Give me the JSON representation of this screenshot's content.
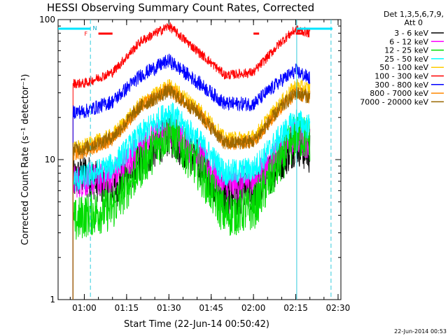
{
  "chart_data": {
    "type": "line",
    "title": "HESSI Observing Summary Count Rates, Corrected",
    "xlabel": "Start Time (22-Jun-14 00:50:42)",
    "ylabel": "Corrected Count Rate (s⁻¹ detector⁻¹)",
    "y_scale": "log",
    "ylim": [
      1,
      100
    ],
    "y_ticks": [
      "1",
      "10",
      "100"
    ],
    "x_range": [
      "00:50:42",
      "02:31:00"
    ],
    "x_ticks": [
      "01:00",
      "01:15",
      "01:30",
      "01:45",
      "02:00",
      "02:15",
      "02:30"
    ],
    "legend_header": [
      "Det 1,3,5,6,7,9,",
      "Att 0"
    ],
    "legend_placement": "right",
    "timestamp": "22-Jun-2014 00:53",
    "flag_labels": {
      "night": "N",
      "flare": "F"
    },
    "marker_times": {
      "cyan_solid": "02:15:20",
      "dashed": [
        "01:02:10",
        "02:27:30"
      ]
    },
    "series": [
      {
        "name": "3 - 6 keV",
        "color": "#000000",
        "x": [
          "00:56:00",
          "01:00:00",
          "01:10:00",
          "01:20:00",
          "01:30:00",
          "01:40:00",
          "01:50:00",
          "02:00:00",
          "02:10:00",
          "02:15:00",
          "02:20:00"
        ],
        "values": [
          7,
          8,
          6,
          10,
          15,
          10,
          5.5,
          6,
          10,
          13,
          11
        ]
      },
      {
        "name": "6 - 12 keV",
        "color": "#ff00ff",
        "x": [
          "00:56:00",
          "01:00:00",
          "01:10:00",
          "01:20:00",
          "01:30:00",
          "01:40:00",
          "01:50:00",
          "02:00:00",
          "02:10:00",
          "02:15:00",
          "02:20:00"
        ],
        "values": [
          7,
          7,
          7.5,
          12,
          17,
          11,
          6.5,
          7,
          12,
          15,
          13
        ]
      },
      {
        "name": "12 - 25 keV",
        "color": "#00dd00",
        "x": [
          "00:56:00",
          "01:00:00",
          "01:10:00",
          "01:20:00",
          "01:30:00",
          "01:40:00",
          "01:50:00",
          "02:00:00",
          "02:10:00",
          "02:15:00",
          "02:20:00"
        ],
        "values": [
          3.5,
          4,
          4.5,
          9,
          16,
          9,
          4,
          4.5,
          10,
          15,
          14
        ]
      },
      {
        "name": "25 - 50 keV",
        "color": "#00ffff",
        "x": [
          "00:56:00",
          "01:00:00",
          "01:10:00",
          "01:20:00",
          "01:30:00",
          "01:40:00",
          "01:50:00",
          "02:00:00",
          "02:10:00",
          "02:15:00",
          "02:20:00"
        ],
        "values": [
          7,
          7.5,
          9,
          15,
          22,
          14,
          8,
          8.5,
          15,
          19,
          17
        ]
      },
      {
        "name": "50 - 100 keV",
        "color": "#ffcc00",
        "x": [
          "00:56:00",
          "01:00:00",
          "01:10:00",
          "01:20:00",
          "01:30:00",
          "01:40:00",
          "01:50:00",
          "02:00:00",
          "02:10:00",
          "02:15:00",
          "02:20:00"
        ],
        "values": [
          12,
          12.5,
          15,
          25,
          34,
          24,
          14,
          14.5,
          26,
          34,
          32
        ]
      },
      {
        "name": "100 - 300 keV",
        "color": "#ff0000",
        "x": [
          "00:56:00",
          "01:00:00",
          "01:10:00",
          "01:20:00",
          "01:30:00",
          "01:40:00",
          "01:50:00",
          "02:00:00",
          "02:10:00",
          "02:15:00",
          "02:20:00"
        ],
        "values": [
          35,
          35,
          42,
          70,
          90,
          60,
          40,
          42,
          70,
          85,
          80
        ]
      },
      {
        "name": "300 - 800 keV",
        "color": "#0000ff",
        "x": [
          "00:56:00",
          "01:00:00",
          "01:10:00",
          "01:20:00",
          "01:30:00",
          "01:40:00",
          "01:50:00",
          "02:00:00",
          "02:10:00",
          "02:15:00",
          "02:20:00"
        ],
        "values": [
          22,
          22,
          26,
          40,
          51,
          36,
          25,
          25,
          37,
          43,
          38
        ]
      },
      {
        "name": "800 - 7000 keV",
        "color": "#ff8800",
        "x": [
          "00:56:00",
          "01:00:00",
          "01:10:00",
          "01:20:00",
          "01:30:00",
          "01:40:00",
          "01:50:00",
          "02:00:00",
          "02:10:00",
          "02:15:00",
          "02:20:00"
        ],
        "values": [
          11,
          11.5,
          14,
          24,
          32,
          22,
          13,
          13.5,
          24,
          30,
          28
        ]
      },
      {
        "name": "7000 - 20000 keV",
        "color": "#996600",
        "x": [
          "00:56:00",
          "01:00:00",
          "01:10:00",
          "01:20:00",
          "01:30:00",
          "01:40:00",
          "01:50:00",
          "02:00:00",
          "02:10:00",
          "02:15:00",
          "02:20:00"
        ],
        "values": [
          12,
          12,
          14.5,
          24,
          31,
          22,
          13,
          13.5,
          24,
          30,
          28
        ]
      }
    ]
  }
}
